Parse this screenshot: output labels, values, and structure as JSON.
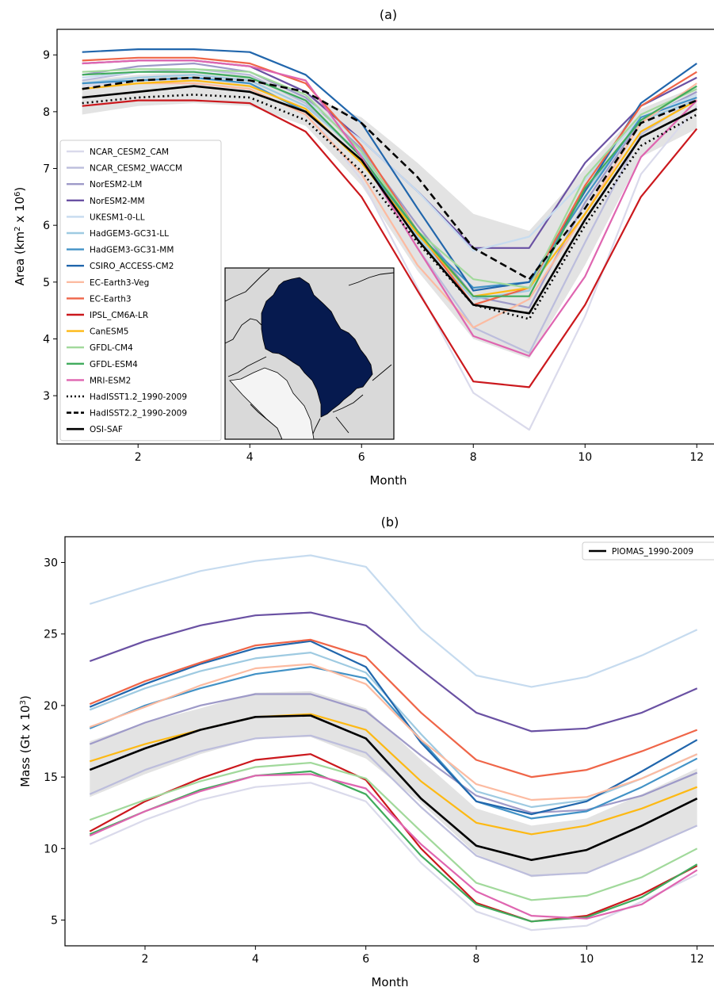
{
  "chart_data": [
    {
      "type": "line",
      "title": "(a)",
      "xlabel": "Month",
      "ylabel": "Area (km",
      "ylabel_sup": "2",
      "ylabel_mid": " x 10",
      "ylabel_sup2": "6",
      "ylabel_end": ")",
      "xlim": [
        0.55,
        12.45
      ],
      "ylim": [
        2.15,
        9.45
      ],
      "xticks": [
        2,
        4,
        6,
        8,
        10,
        12
      ],
      "yticks": [
        3,
        4,
        5,
        6,
        7,
        8,
        9
      ],
      "x": [
        1,
        2,
        3,
        4,
        5,
        6,
        7,
        8,
        9,
        10,
        11,
        12
      ],
      "legend_position": "left",
      "band": {
        "upper": [
          8.55,
          8.65,
          8.7,
          8.65,
          8.3,
          7.9,
          7.1,
          6.2,
          5.9,
          7.0,
          8.05,
          8.45
        ],
        "lower": [
          7.95,
          8.1,
          8.15,
          8.1,
          7.75,
          6.7,
          5.2,
          4.0,
          3.65,
          5.3,
          7.2,
          7.7
        ]
      },
      "series": [
        {
          "name": "NCAR_CESM2_CAM",
          "color": "#dadaeb",
          "style": "solid",
          "values": [
            8.45,
            8.55,
            8.55,
            8.45,
            8.05,
            6.8,
            4.9,
            3.05,
            2.4,
            4.4,
            6.9,
            8.1
          ]
        },
        {
          "name": "NCAR_CESM2_WACCM",
          "color": "#bcbddc",
          "style": "solid",
          "values": [
            8.55,
            8.7,
            8.75,
            8.65,
            8.15,
            7.2,
            5.6,
            4.2,
            3.75,
            5.7,
            7.6,
            8.25
          ]
        },
        {
          "name": "NorESM2-LM",
          "color": "#9e9ac8",
          "style": "solid",
          "values": [
            8.65,
            8.8,
            8.85,
            8.7,
            8.25,
            7.35,
            6.0,
            4.75,
            4.55,
            6.4,
            7.85,
            8.35
          ]
        },
        {
          "name": "NorESM2-MM",
          "color": "#6a51a3",
          "style": "solid",
          "values": [
            8.85,
            8.9,
            8.9,
            8.8,
            8.35,
            7.5,
            6.6,
            5.6,
            5.6,
            7.1,
            8.1,
            8.6
          ]
        },
        {
          "name": "UKESM1-0-LL",
          "color": "#c6dbef",
          "style": "solid",
          "values": [
            8.6,
            8.7,
            8.7,
            8.6,
            8.2,
            7.5,
            6.6,
            5.55,
            5.8,
            6.8,
            7.9,
            8.3
          ]
        },
        {
          "name": "HadGEM3-GC31-LL",
          "color": "#9ecae1",
          "style": "solid",
          "values": [
            8.5,
            8.6,
            8.65,
            8.55,
            8.1,
            7.25,
            5.8,
            4.7,
            4.85,
            6.6,
            7.85,
            8.2
          ]
        },
        {
          "name": "HadGEM3-GC31-MM",
          "color": "#4292c6",
          "style": "solid",
          "values": [
            8.5,
            8.55,
            8.6,
            8.5,
            8.0,
            7.15,
            5.85,
            4.9,
            5.0,
            6.5,
            7.9,
            8.25
          ]
        },
        {
          "name": "CSIRO_ACCESS-CM2",
          "color": "#2166ac",
          "style": "solid",
          "values": [
            9.05,
            9.1,
            9.1,
            9.05,
            8.65,
            7.8,
            6.3,
            4.85,
            5.0,
            6.6,
            8.15,
            8.85
          ]
        },
        {
          "name": "EC-Earth3-Veg",
          "color": "#fcbba1",
          "style": "solid",
          "values": [
            8.4,
            8.5,
            8.5,
            8.4,
            7.95,
            6.9,
            5.3,
            4.2,
            4.7,
            6.2,
            7.8,
            8.5
          ]
        },
        {
          "name": "EC-Earth3",
          "color": "#ef6548",
          "style": "solid",
          "values": [
            8.9,
            8.95,
            8.95,
            8.85,
            8.5,
            7.4,
            5.9,
            4.6,
            4.9,
            6.7,
            8.1,
            8.7
          ]
        },
        {
          "name": "IPSL_CM6A-LR",
          "color": "#cb181d",
          "style": "solid",
          "values": [
            8.1,
            8.2,
            8.2,
            8.15,
            7.65,
            6.5,
            4.85,
            3.25,
            3.15,
            4.6,
            6.5,
            7.7
          ]
        },
        {
          "name": "CanESM5",
          "color": "#fdb913",
          "style": "solid",
          "values": [
            8.4,
            8.5,
            8.55,
            8.45,
            8.05,
            7.1,
            5.85,
            4.75,
            4.9,
            6.2,
            7.65,
            8.2
          ]
        },
        {
          "name": "GFDL-CM4",
          "color": "#a1d99b",
          "style": "solid",
          "values": [
            8.7,
            8.75,
            8.75,
            8.7,
            8.3,
            7.3,
            5.9,
            5.05,
            4.9,
            6.85,
            7.95,
            8.4
          ]
        },
        {
          "name": "GFDL-ESM4",
          "color": "#41ab5d",
          "style": "solid",
          "values": [
            8.65,
            8.7,
            8.7,
            8.6,
            8.2,
            7.2,
            5.9,
            4.75,
            4.75,
            6.65,
            7.85,
            8.45
          ]
        },
        {
          "name": "MRI-ESM2",
          "color": "#df65b0",
          "style": "solid",
          "values": [
            8.85,
            8.9,
            8.9,
            8.8,
            8.55,
            7.2,
            5.6,
            4.05,
            3.7,
            5.1,
            7.2,
            8.2
          ]
        },
        {
          "name": "HadISST1.2_1990-2009",
          "color": "#000000",
          "style": "dotted",
          "values": [
            8.15,
            8.25,
            8.3,
            8.25,
            7.85,
            6.95,
            5.7,
            4.6,
            4.35,
            6.0,
            7.4,
            7.95
          ]
        },
        {
          "name": "HadISST2.2_1990-2009",
          "color": "#000000",
          "style": "dashed",
          "values": [
            8.4,
            8.55,
            8.6,
            8.55,
            8.35,
            7.8,
            6.85,
            5.6,
            5.05,
            6.3,
            7.8,
            8.2
          ]
        },
        {
          "name": "OSI-SAF",
          "color": "#000000",
          "style": "solid",
          "values": [
            8.25,
            8.35,
            8.45,
            8.35,
            8.0,
            7.15,
            5.75,
            4.6,
            4.45,
            6.1,
            7.55,
            8.05
          ]
        }
      ]
    },
    {
      "type": "line",
      "title": "(b)",
      "xlabel": "Month",
      "ylabel": "Mass (Gt x 10",
      "ylabel_sup": "3",
      "ylabel_end": ")",
      "xlim": [
        0.55,
        12.45
      ],
      "ylim": [
        3.2,
        31.8
      ],
      "xticks": [
        2,
        4,
        6,
        8,
        10,
        12
      ],
      "yticks": [
        5,
        10,
        15,
        20,
        25,
        30
      ],
      "x": [
        1,
        2,
        3,
        4,
        5,
        6,
        7,
        8,
        9,
        10,
        11,
        12
      ],
      "legend_position": "top-right",
      "band": {
        "upper": [
          17.5,
          18.8,
          19.8,
          20.9,
          21.0,
          19.8,
          16.2,
          12.8,
          11.6,
          12.1,
          13.8,
          15.6
        ],
        "lower": [
          13.6,
          15.2,
          16.6,
          17.7,
          17.8,
          16.3,
          13.2,
          9.6,
          8.0,
          8.3,
          9.8,
          11.6
        ]
      },
      "series": [
        {
          "color": "#dadaeb",
          "values": [
            10.3,
            12.0,
            13.4,
            14.3,
            14.6,
            13.3,
            9.0,
            5.6,
            4.3,
            4.6,
            6.3,
            8.2
          ]
        },
        {
          "color": "#bcbddc",
          "values": [
            13.8,
            15.5,
            16.8,
            17.7,
            17.9,
            16.7,
            12.9,
            9.5,
            8.1,
            8.3,
            9.9,
            11.6
          ]
        },
        {
          "color": "#9e9ac8",
          "values": [
            17.3,
            18.8,
            20.0,
            20.8,
            20.8,
            19.6,
            16.5,
            13.7,
            12.5,
            12.7,
            13.7,
            15.3
          ]
        },
        {
          "color": "#6a51a3",
          "values": [
            23.1,
            24.5,
            25.6,
            26.3,
            26.5,
            25.6,
            22.5,
            19.5,
            18.2,
            18.4,
            19.5,
            21.2
          ]
        },
        {
          "color": "#c6dbef",
          "values": [
            27.1,
            28.3,
            29.4,
            30.1,
            30.5,
            29.7,
            25.3,
            22.1,
            21.3,
            22.0,
            23.5,
            25.3
          ]
        },
        {
          "color": "#9ecae1",
          "values": [
            19.7,
            21.2,
            22.4,
            23.3,
            23.7,
            22.3,
            18.0,
            14.0,
            12.9,
            13.4,
            14.9,
            16.6
          ]
        },
        {
          "color": "#4292c6",
          "values": [
            18.4,
            20.0,
            21.2,
            22.2,
            22.7,
            21.9,
            17.6,
            13.3,
            12.1,
            12.6,
            14.3,
            16.3
          ]
        },
        {
          "color": "#2166ac",
          "values": [
            19.9,
            21.5,
            22.9,
            24.0,
            24.5,
            22.7,
            17.4,
            13.3,
            12.4,
            13.3,
            15.4,
            17.6
          ]
        },
        {
          "color": "#fcbba1",
          "values": [
            18.5,
            19.9,
            21.4,
            22.6,
            22.9,
            21.5,
            17.6,
            14.5,
            13.4,
            13.6,
            14.9,
            16.6
          ]
        },
        {
          "color": "#ef6548",
          "values": [
            20.1,
            21.7,
            23.0,
            24.2,
            24.6,
            23.4,
            19.5,
            16.2,
            15.0,
            15.5,
            16.8,
            18.3
          ]
        },
        {
          "color": "#cb181d",
          "values": [
            11.2,
            13.3,
            14.9,
            16.2,
            16.6,
            14.8,
            10.0,
            6.2,
            4.9,
            5.3,
            6.8,
            8.8
          ]
        },
        {
          "color": "#fdb913",
          "values": [
            16.1,
            17.3,
            18.3,
            19.2,
            19.4,
            18.3,
            14.7,
            11.8,
            11.0,
            11.6,
            12.8,
            14.3
          ]
        },
        {
          "color": "#a1d99b",
          "values": [
            12.0,
            13.4,
            14.7,
            15.7,
            16.0,
            14.9,
            11.2,
            7.6,
            6.4,
            6.7,
            8.0,
            10.0
          ]
        },
        {
          "color": "#41ab5d",
          "values": [
            11.0,
            12.6,
            14.1,
            15.1,
            15.4,
            13.8,
            9.5,
            6.1,
            4.9,
            5.2,
            6.6,
            8.9
          ]
        },
        {
          "color": "#df65b0",
          "values": [
            10.9,
            12.6,
            14.0,
            15.1,
            15.2,
            14.2,
            10.3,
            7.0,
            5.3,
            5.1,
            6.1,
            8.5
          ]
        },
        {
          "name": "PIOMAS_1990-2009",
          "color": "#000000",
          "values": [
            15.5,
            17.0,
            18.3,
            19.2,
            19.3,
            17.7,
            13.5,
            10.2,
            9.2,
            9.9,
            11.6,
            13.5
          ]
        }
      ]
    }
  ]
}
